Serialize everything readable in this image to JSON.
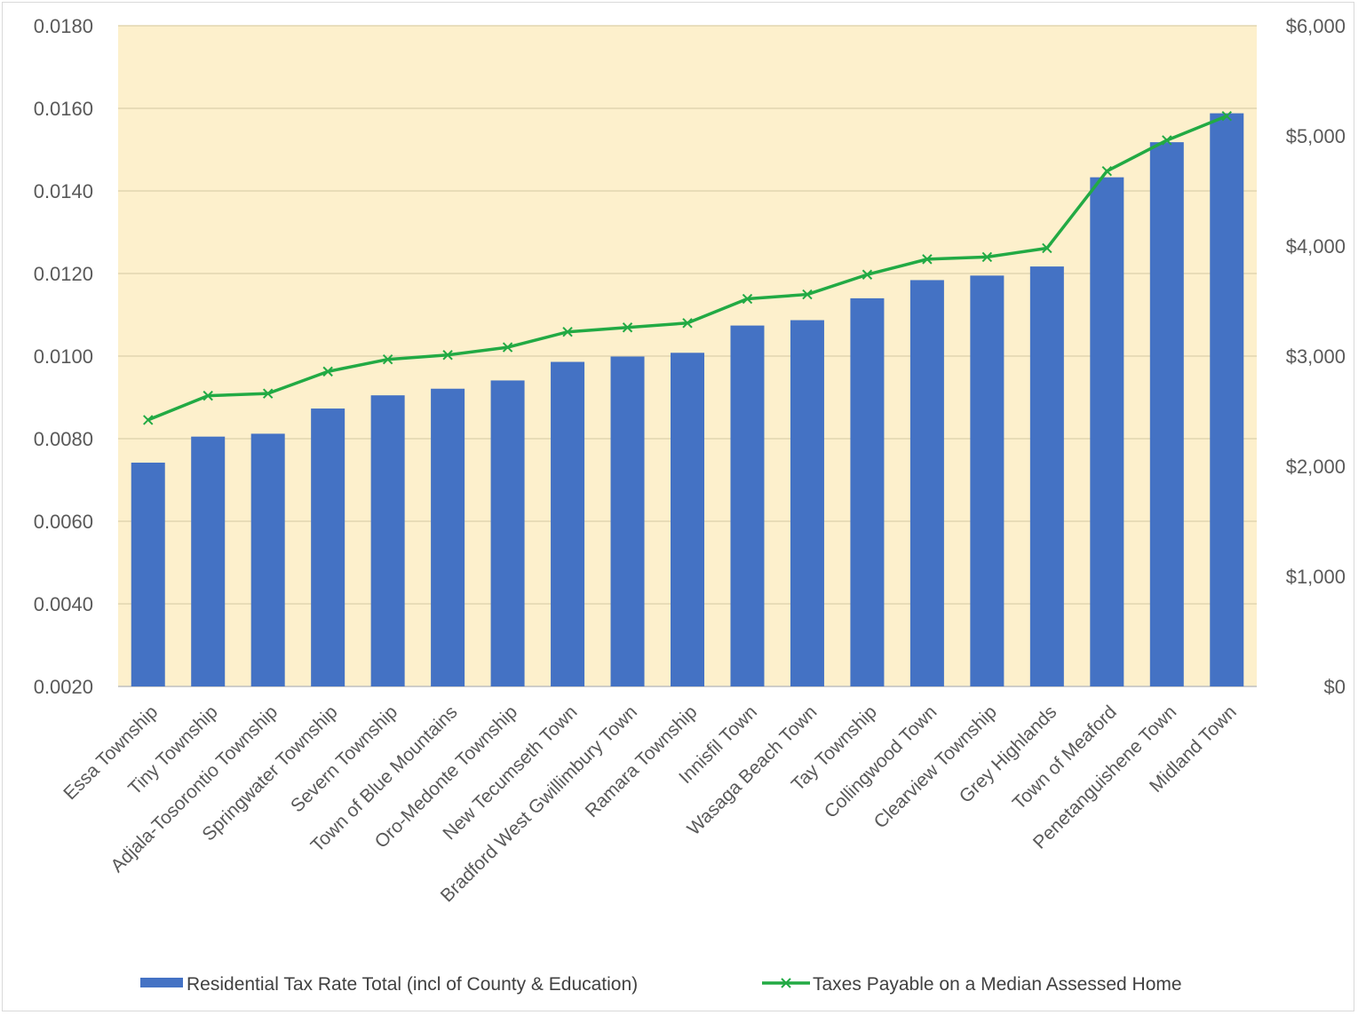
{
  "chart_data": {
    "type": "bar",
    "categories": [
      "Essa Township",
      "Tiny Township",
      "Adjala-Tosorontio Township",
      "Springwater Township",
      "Severn Township",
      "Town of Blue Mountains",
      "Oro-Medonte Township",
      "New Tecumseth Town",
      "Bradford West Gwillimbury Town",
      "Ramara Township",
      "Innisfil Town",
      "Wasaga Beach Town",
      "Tay Township",
      "Collingwood Town",
      "Clearview Township",
      "Grey Highlands",
      "Town of Meaford",
      "Penetanguishene Town",
      "Midland Town"
    ],
    "series": [
      {
        "name": "Residential Tax Rate Total (incl of County & Education)",
        "type": "bar",
        "axis": "left",
        "color": "#4472c4",
        "values": [
          0.00742,
          0.00805,
          0.00812,
          0.00873,
          0.00905,
          0.00921,
          0.00941,
          0.00986,
          0.00999,
          0.01008,
          0.01074,
          0.01087,
          0.0114,
          0.01184,
          0.01195,
          0.01217,
          0.01433,
          0.01518,
          0.01588
        ]
      },
      {
        "name": "Taxes Payable on a Median Assessed Home",
        "type": "line",
        "axis": "right",
        "color": "#22aa44",
        "values": [
          2420,
          2640,
          2660,
          2860,
          2970,
          3010,
          3080,
          3220,
          3260,
          3300,
          3520,
          3560,
          3740,
          3880,
          3900,
          3980,
          4680,
          4960,
          5180
        ]
      }
    ],
    "y_left": {
      "ylim": [
        0.002,
        0.018
      ],
      "ticks": [
        "0.0020",
        "0.0040",
        "0.0060",
        "0.0080",
        "0.0100",
        "0.0120",
        "0.0140",
        "0.0160",
        "0.0180"
      ]
    },
    "y_right": {
      "ylim": [
        0,
        6000
      ],
      "ticks": [
        "$0",
        "$1,000",
        "$2,000",
        "$3,000",
        "$4,000",
        "$5,000",
        "$6,000"
      ]
    },
    "grid": true,
    "plot_background": "#fdf0cc",
    "legend_position": "bottom"
  }
}
